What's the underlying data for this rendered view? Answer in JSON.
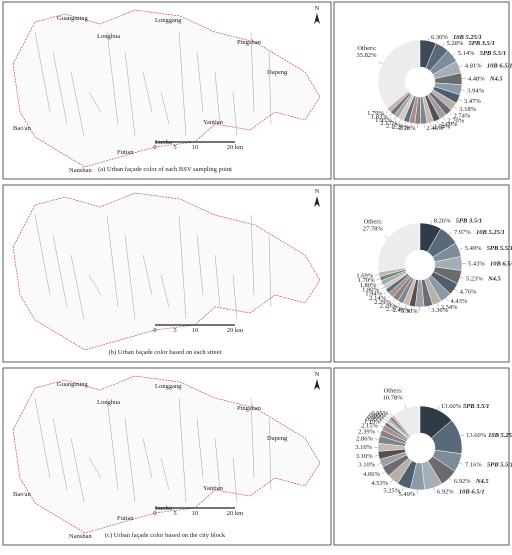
{
  "chart_data": [
    {
      "type": "pie",
      "caption": "(a) Urban façade color of each BSV sampling point",
      "map_labels": [
        "Guangming",
        "Longhua",
        "Longgang",
        "Pingshan",
        "Dapeng",
        "Yantian",
        "Luohu",
        "Futian",
        "Nanshan",
        "Bao'an"
      ],
      "north": "N",
      "scale_labels": [
        "0",
        "5",
        "10",
        "20 km"
      ],
      "categories": [
        "Others:",
        "10B 5.25/1",
        "5PB 3.5/1",
        "5PB 5.5/1",
        "10B 6.5/1",
        "N4.5",
        null,
        null,
        null,
        null,
        null,
        null,
        null,
        null,
        null,
        null,
        null,
        null,
        null,
        null,
        null
      ],
      "values": [
        35.82,
        6.3,
        5.28,
        5.14,
        4.81,
        4.48,
        3.94,
        3.47,
        3.18,
        2.74,
        2.7,
        2.69,
        2.54,
        2.46,
        2.28,
        2.26,
        2.17,
        2.17,
        1.95,
        1.83,
        1.79
      ],
      "value_labels": [
        "35.82%",
        "6.30%",
        "5.28%",
        "5.14%",
        "4.81%",
        "4.48%",
        "3.94%",
        "3.47%",
        "3.18%",
        "2.74%",
        "2.70%",
        "2.69%",
        "2.54%",
        "2.46%",
        "2.28%",
        "2.26%",
        "2.17%",
        "2.17%",
        "1.95%",
        "1.83%",
        "1.79%"
      ],
      "colors": [
        "#ececec",
        "#3d4a57",
        "#58697a",
        "#7d8c9a",
        "#a3aeb8",
        "#6b6b6b",
        "#8a9aa8",
        "#4e5e6d",
        "#b7b0a8",
        "#6e6a75",
        "#9aa0a8",
        "#5a4e50",
        "#c8b8b0",
        "#7a8894",
        "#8b7f82",
        "#a89088",
        "#5c6f7e",
        "#d4c8c0",
        "#a0a8b0",
        "#7b6a6e",
        "#c0b4ae"
      ]
    },
    {
      "type": "pie",
      "caption": "(b) Urban façade color based on each street",
      "north": "N",
      "scale_labels": [
        "0",
        "5",
        "10",
        "20 km"
      ],
      "categories": [
        "Others:",
        "5PB 3.5/1",
        "10B 5.25/1",
        "5PB 5.5/1",
        "10B 6.5/1",
        "N4.5",
        null,
        null,
        null,
        null,
        null,
        null,
        null,
        null,
        null,
        null,
        null,
        null,
        null,
        null,
        null
      ],
      "values": [
        27.78,
        8.26,
        7.97,
        5.49,
        5.43,
        5.23,
        4.76,
        4.43,
        3.54,
        3.36,
        3.3,
        2.43,
        2.37,
        2.29,
        2.29,
        2.14,
        1.94,
        1.8,
        1.8,
        1.7,
        1.69
      ],
      "value_labels": [
        "27.78%",
        "8.26%",
        "7.97%",
        "5.49%",
        "5.43%",
        "5.23%",
        "4.76%",
        "4.43%",
        "3.54%",
        "3.36%",
        "3.30%",
        "2.43%",
        "2.37%",
        "2.29%",
        "2.29%",
        "2.14%",
        "1.94%",
        "1.80%",
        "1.80%",
        "1.70%",
        "1.69%"
      ],
      "colors": [
        "#ececec",
        "#2f3b47",
        "#58697a",
        "#7d8c9a",
        "#a3aeb8",
        "#6b6b6b",
        "#4e5e6d",
        "#8a9aa8",
        "#b7b0a8",
        "#6e6a75",
        "#9aa0a8",
        "#5a4e50",
        "#c8b8b0",
        "#7a8894",
        "#8b7f82",
        "#a89088",
        "#5c6f7e",
        "#d4c8c0",
        "#a0a8b0",
        "#6f8a6e",
        "#c0b4ae"
      ]
    },
    {
      "type": "pie",
      "caption": "(c) Urban façade color based on the city block",
      "map_labels": [
        "Guangming",
        "Longhua",
        "Longgang",
        "Pingshan",
        "Dapeng",
        "Yantian",
        "Luohu",
        "Futian",
        "Nanshan",
        "Bao'an"
      ],
      "north": "N",
      "scale_labels": [
        "0",
        "5",
        "10",
        "20 km"
      ],
      "categories": [
        "Others:",
        "5PB 3.5/1",
        "10B 5.25/1",
        "5PB 5.5/1",
        "N4.5",
        "10B 6.5/1",
        null,
        null,
        null,
        null,
        null,
        null,
        null,
        null,
        null,
        null,
        null,
        null,
        null,
        null,
        null
      ],
      "values": [
        10.78,
        13.6,
        13.6,
        7.16,
        6.92,
        6.92,
        5.49,
        5.25,
        4.53,
        4.06,
        3.1,
        3.1,
        3.1,
        2.86,
        2.39,
        2.15,
        1.19,
        0.95,
        0.95,
        0.95,
        0.95
      ],
      "value_labels": [
        "10.78%",
        "13.60%",
        "13.60%",
        "7.16%",
        "6.92%",
        "6.92%",
        "5.49%",
        "5.25%",
        "4.53%",
        "4.06%",
        "3.10%",
        "3.10%",
        "3.10%",
        "2.86%",
        "2.39%",
        "2.15%",
        "1.19%",
        "0.95%",
        "0.95%",
        "0.95%",
        "0.95%"
      ],
      "colors": [
        "#ececec",
        "#2f3b47",
        "#58697a",
        "#7d8c9a",
        "#6b6b6b",
        "#a3aeb8",
        "#8a9aa8",
        "#4e5e6d",
        "#b7b0a8",
        "#6e6a75",
        "#9aa0a8",
        "#5a4e50",
        "#c8b8b0",
        "#7a8894",
        "#8b7f82",
        "#a89088",
        "#5c6f7e",
        "#d4c8c0",
        "#a0a8b0",
        "#7b6a6e",
        "#c0b4ae"
      ]
    }
  ]
}
